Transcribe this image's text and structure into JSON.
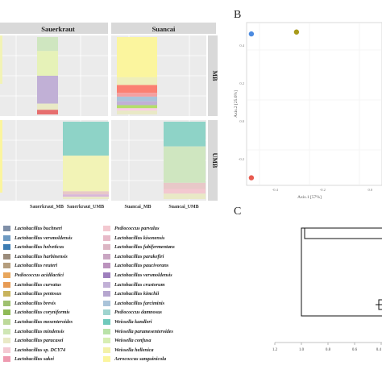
{
  "panels": {
    "a_strip_cols": [
      "Sauerkraut",
      "Suancai"
    ],
    "a_strip_rows": [
      "MB",
      "UMB"
    ],
    "a_x_ticks": [
      "Sauerkraut_MB",
      "Sauerkraut_UMB",
      "Suancai_MB",
      "Suancai_UMB"
    ],
    "b_label": "B",
    "c_label": "C"
  },
  "legend": [
    {
      "name": "Lactobacillus buchneri",
      "color": "#7f8fa8"
    },
    {
      "name": "Lactobacillus versmoldensis",
      "color": "#6e9ac2"
    },
    {
      "name": "Lactobacillus helveticus",
      "color": "#3d7db3"
    },
    {
      "name": "Lactobacillus harbinensis",
      "color": "#9b8c7c"
    },
    {
      "name": "Lactobacillus reuteri",
      "color": "#b59e7e"
    },
    {
      "name": "Pediococcus acidilactici",
      "color": "#e8a65c"
    },
    {
      "name": "Lactobacillus curvatus",
      "color": "#e79b54"
    },
    {
      "name": "Lactobacillus pentosus",
      "color": "#c8b35c"
    },
    {
      "name": "Lactobacillus brevis",
      "color": "#9ec06f"
    },
    {
      "name": "Lactobacillus coryniformis",
      "color": "#8fba57"
    },
    {
      "name": "Lactobacillus mesenteroides",
      "color": "#bdd99a"
    },
    {
      "name": "Lactobacillus mindensis",
      "color": "#cfe6b5"
    },
    {
      "name": "Lactobacillus paracasei",
      "color": "#e9e9c6"
    },
    {
      "name": "Lactobacillus sp. DCY74",
      "color": "#f4c9d3"
    },
    {
      "name": "Lactobacillus sakei",
      "color": "#ee9ab0"
    },
    {
      "name": "Pediococcus parvulus",
      "color": "#f3c8d0"
    },
    {
      "name": "Lactobacillus kisonensis",
      "color": "#e7b9c8"
    },
    {
      "name": "Lactobacillus fabifermentans",
      "color": "#dcb6c4"
    },
    {
      "name": "Lactobacillus parakefiri",
      "color": "#c9a6c2"
    },
    {
      "name": "Lactobacillus paucivorans",
      "color": "#bb93bd"
    },
    {
      "name": "Lactobacillus versmoldensis",
      "color": "#9e7fbd"
    },
    {
      "name": "Lactobacillus crustorum",
      "color": "#c1b0d6"
    },
    {
      "name": "Lactobacillus kimchii",
      "color": "#b6a6cf"
    },
    {
      "name": "Lactobacillus farciminis",
      "color": "#a9c3d9"
    },
    {
      "name": "Pediococcus damnosus",
      "color": "#9fd4cf"
    },
    {
      "name": "Weissella kandleri",
      "color": "#6fc9bb"
    },
    {
      "name": "Weissella paramesenteroides",
      "color": "#b9e2a8"
    },
    {
      "name": "Weissella confusa",
      "color": "#d7eeb3"
    },
    {
      "name": "Weissella hellenica",
      "color": "#f3f1a8"
    },
    {
      "name": "Aerococcus sanguinicola",
      "color": "#fbf59e"
    }
  ],
  "chart_data": [
    {
      "type": "bar",
      "title": "",
      "facets_cols": [
        "Sauerkraut",
        "Suancai"
      ],
      "facets_rows": [
        "MB",
        "UMB"
      ],
      "categories": [
        "Sauerkraut_MB",
        "Sauerkraut_UMB",
        "Suancai_MB",
        "Suancai_UMB"
      ],
      "stacks": {
        "Sauerkraut_MB": [
          {
            "color": "#cfe6c0",
            "value": 0.18
          },
          {
            "color": "#e6f2b8",
            "value": 0.32
          },
          {
            "color": "#c1b0d6",
            "value": 0.36
          },
          {
            "color": "#e9e9c6",
            "value": 0.08
          },
          {
            "color": "#e66e6e",
            "value": 0.06
          }
        ],
        "Sauerkraut_UMB": [
          {
            "color": "#8ed3c7",
            "value": 0.44
          },
          {
            "color": "#f2f3b6",
            "value": 0.46
          },
          {
            "color": "#e8c8c8",
            "value": 0.04
          },
          {
            "color": "#d9b6d9",
            "value": 0.03
          },
          {
            "color": "#e9e9c6",
            "value": 0.03
          }
        ],
        "Suancai_MB": [
          {
            "color": "#fbf59e",
            "value": 0.52
          },
          {
            "color": "#eeeebb",
            "value": 0.1
          },
          {
            "color": "#fb8072",
            "value": 0.1
          },
          {
            "color": "#f4a0a0",
            "value": 0.05
          },
          {
            "color": "#a9c3d9",
            "value": 0.06
          },
          {
            "color": "#c1b0d6",
            "value": 0.05
          },
          {
            "color": "#b3de69",
            "value": 0.04
          },
          {
            "color": "#fccde5",
            "value": 0.03
          },
          {
            "color": "#e9e9c6",
            "value": 0.05
          }
        ],
        "Suancai_UMB": [
          {
            "color": "#8ed3c7",
            "value": 0.32
          },
          {
            "color": "#cfe6c0",
            "value": 0.47
          },
          {
            "color": "#e8c8c8",
            "value": 0.08
          },
          {
            "color": "#f3c8d0",
            "value": 0.06
          },
          {
            "color": "#e9e9c6",
            "value": 0.07
          }
        ]
      }
    },
    {
      "type": "scatter",
      "xlabel": "Axis.1 [57%]",
      "ylabel": "Axis.2 [25.6%]",
      "x_ticks": [
        "-0.4",
        "-0.2",
        "0.0"
      ],
      "y_ticks": [
        "0.4",
        "0.2",
        "0.0",
        "-0.2"
      ],
      "points": [
        {
          "x": -0.5,
          "y": 0.46,
          "color": "#4c8be0"
        },
        {
          "x": -0.31,
          "y": 0.47,
          "color": "#a89a1a"
        },
        {
          "x": -0.5,
          "y": -0.3,
          "color": "#e85a4f"
        }
      ],
      "xlim": [
        -0.52,
        0.05
      ],
      "ylim": [
        -0.34,
        0.52
      ]
    },
    {
      "type": "dendrogram",
      "x_ticks": [
        "1.2",
        "1.0",
        "0.8",
        "0.6",
        "0.4"
      ]
    }
  ]
}
